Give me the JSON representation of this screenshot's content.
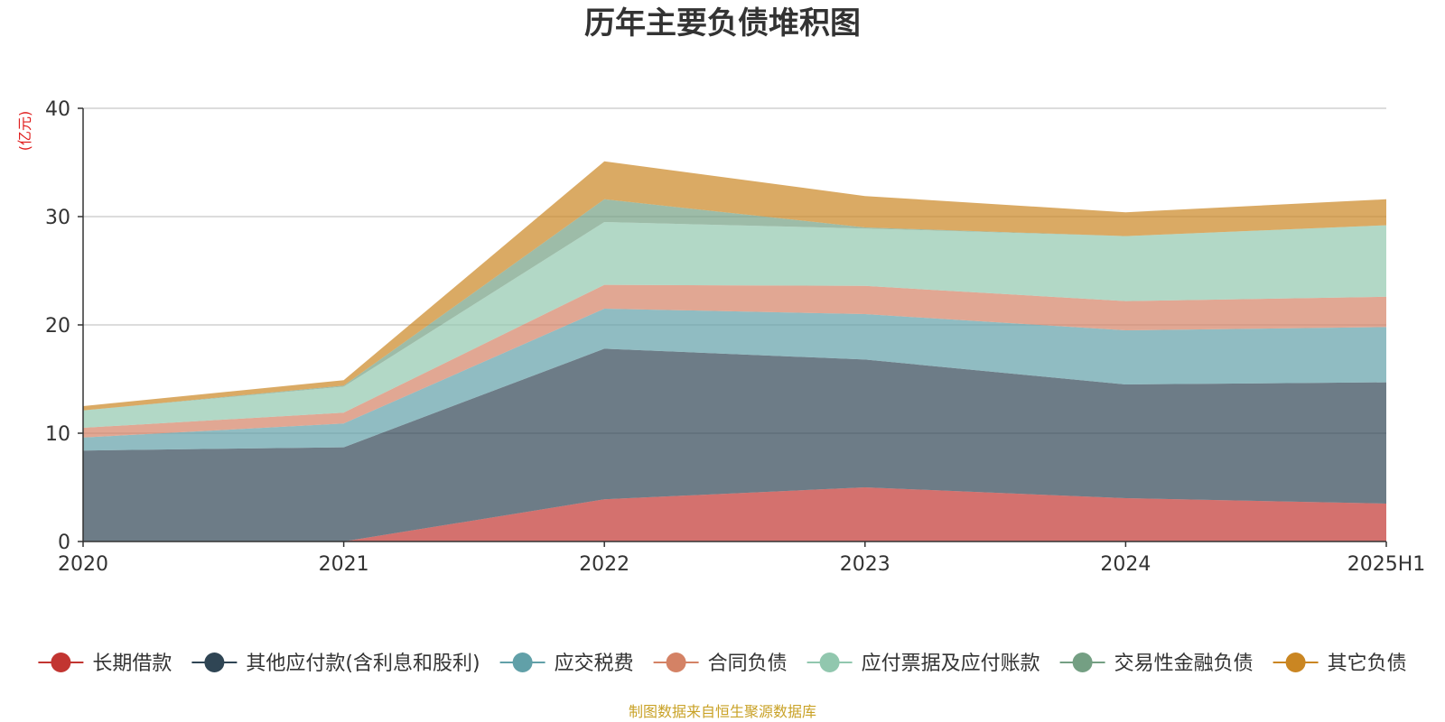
{
  "chart_data": {
    "type": "area",
    "stacked": true,
    "title": "历年主要负债堆积图",
    "y_unit_label": "(亿元)",
    "categories": [
      "2020",
      "2021",
      "2022",
      "2023",
      "2024",
      "2025H1"
    ],
    "ylim": [
      0,
      40
    ],
    "yticks": [
      "0",
      "10",
      "20",
      "30",
      "40"
    ],
    "grid": true,
    "legend_position": "bottom",
    "series": [
      {
        "name": "长期借款",
        "color": "#c23531",
        "values": [
          0,
          0,
          3.9,
          5.0,
          4.0,
          3.5
        ]
      },
      {
        "name": "其他应付款(含利息和股利)",
        "color": "#2f4554",
        "values": [
          8.4,
          8.7,
          13.9,
          11.8,
          10.5,
          11.2
        ]
      },
      {
        "name": "应交税费",
        "color": "#61a0a8",
        "values": [
          1.2,
          2.2,
          3.7,
          4.2,
          5.0,
          5.1
        ]
      },
      {
        "name": "合同负债",
        "color": "#d48265",
        "values": [
          0.9,
          1.0,
          2.2,
          2.6,
          2.7,
          2.8
        ]
      },
      {
        "name": "应付票据及应付账款",
        "color": "#91c7ae",
        "values": [
          1.6,
          2.4,
          5.8,
          5.3,
          6.0,
          6.6
        ]
      },
      {
        "name": "交易性金融负债",
        "color": "#749f83",
        "values": [
          0,
          0.1,
          2.1,
          0.1,
          0,
          0
        ]
      },
      {
        "name": "其它负债",
        "color": "#ca8622",
        "values": [
          0.4,
          0.5,
          3.5,
          2.9,
          2.2,
          2.4
        ]
      }
    ],
    "source_note": "制图数据来自恒生聚源数据库",
    "unit_color": "#e01f1f",
    "source_color": "#c9a227"
  }
}
